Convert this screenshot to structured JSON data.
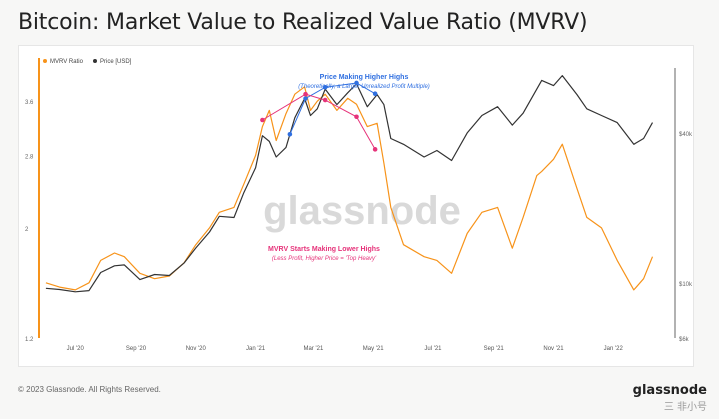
{
  "header": {
    "title": "Bitcoin: Market Value to Realized Value Ratio (MVRV)"
  },
  "footer": {
    "copyright": "© 2023 Glassnode. All Rights Reserved.",
    "logo": "glassnode",
    "watermark_corner": "三 非小号"
  },
  "chart_data": {
    "type": "line",
    "watermark": "glassnode",
    "legend": {
      "placement": "top-left",
      "entries": [
        "MVRV Ratio",
        "Price [USD]"
      ]
    },
    "colors": {
      "mvrv": "#f7931a",
      "price": "#333333",
      "blue_annotation": "#2f6fe0",
      "pink_annotation": "#e6337a"
    },
    "x_ticks": [
      "Jul '20",
      "Sep '20",
      "Nov '20",
      "Jan '21",
      "Mar '21",
      "May '21",
      "Jul '21",
      "Sep '21",
      "Nov '21",
      "Jan '22"
    ],
    "y_left": {
      "scale": "log",
      "ticks": [
        "1.2",
        "2",
        "2.8",
        "3.6"
      ],
      "tick_values": [
        1.2,
        2,
        2.8,
        3.6
      ],
      "range": [
        1.2,
        4.4
      ]
    },
    "y_right": {
      "scale": "log",
      "ticks": [
        "$6k",
        "$10k",
        "$40k"
      ],
      "tick_values": [
        6000,
        10000,
        40000
      ],
      "range": [
        6000,
        80000
      ]
    },
    "series": [
      {
        "name": "MVRV Ratio",
        "dates": [
          "2020-06-01",
          "2020-06-15",
          "2020-07-01",
          "2020-07-15",
          "2020-07-27",
          "2020-08-10",
          "2020-08-20",
          "2020-09-05",
          "2020-09-20",
          "2020-10-05",
          "2020-10-20",
          "2020-11-01",
          "2020-11-15",
          "2020-11-25",
          "2020-12-10",
          "2020-12-20",
          "2021-01-01",
          "2021-01-08",
          "2021-01-15",
          "2021-01-22",
          "2021-02-01",
          "2021-02-10",
          "2021-02-20",
          "2021-02-26",
          "2021-03-05",
          "2021-03-13",
          "2021-03-25",
          "2021-04-05",
          "2021-04-14",
          "2021-04-25",
          "2021-05-05",
          "2021-05-12",
          "2021-05-19",
          "2021-06-01",
          "2021-06-22",
          "2021-07-05",
          "2021-07-20",
          "2021-08-05",
          "2021-08-20",
          "2021-09-05",
          "2021-09-20",
          "2021-10-01",
          "2021-10-15",
          "2021-10-20",
          "2021-11-01",
          "2021-11-10",
          "2021-11-25",
          "2021-12-05",
          "2021-12-20",
          "2022-01-05",
          "2022-01-22",
          "2022-02-01",
          "2022-02-10"
        ],
        "values": [
          1.55,
          1.52,
          1.5,
          1.55,
          1.72,
          1.78,
          1.75,
          1.62,
          1.58,
          1.6,
          1.7,
          1.85,
          2.0,
          2.15,
          2.2,
          2.45,
          2.8,
          3.2,
          3.45,
          3.0,
          3.4,
          3.72,
          3.85,
          3.45,
          3.6,
          3.72,
          3.45,
          3.65,
          3.55,
          3.2,
          3.25,
          2.7,
          2.2,
          1.85,
          1.75,
          1.72,
          1.62,
          1.95,
          2.15,
          2.2,
          1.82,
          2.1,
          2.55,
          2.6,
          2.75,
          2.95,
          2.4,
          2.1,
          2.0,
          1.72,
          1.5,
          1.58,
          1.75
        ]
      },
      {
        "name": "Price [USD]",
        "dates": [
          "2020-06-01",
          "2020-06-15",
          "2020-07-01",
          "2020-07-15",
          "2020-07-27",
          "2020-08-10",
          "2020-08-20",
          "2020-09-05",
          "2020-09-20",
          "2020-10-05",
          "2020-10-20",
          "2020-11-01",
          "2020-11-15",
          "2020-11-25",
          "2020-12-10",
          "2020-12-20",
          "2021-01-01",
          "2021-01-08",
          "2021-01-15",
          "2021-01-22",
          "2021-02-01",
          "2021-02-10",
          "2021-02-20",
          "2021-02-26",
          "2021-03-05",
          "2021-03-13",
          "2021-03-25",
          "2021-04-05",
          "2021-04-14",
          "2021-04-25",
          "2021-05-05",
          "2021-05-12",
          "2021-05-19",
          "2021-06-01",
          "2021-06-22",
          "2021-07-05",
          "2021-07-20",
          "2021-08-05",
          "2021-08-20",
          "2021-09-05",
          "2021-09-20",
          "2021-10-01",
          "2021-10-15",
          "2021-10-20",
          "2021-11-01",
          "2021-11-10",
          "2021-11-25",
          "2021-12-05",
          "2021-12-20",
          "2022-01-05",
          "2022-01-22",
          "2022-02-01",
          "2022-02-10"
        ],
        "values": [
          9500,
          9400,
          9200,
          9300,
          11000,
          11700,
          11800,
          10300,
          10800,
          10700,
          12000,
          13800,
          16000,
          18500,
          18300,
          23000,
          29000,
          39000,
          37000,
          32000,
          35000,
          46000,
          55000,
          47000,
          50000,
          60000,
          52000,
          58000,
          63000,
          51000,
          57000,
          52000,
          38000,
          36000,
          32000,
          34000,
          31000,
          40000,
          47000,
          51000,
          43000,
          48000,
          60000,
          65000,
          62000,
          68000,
          57000,
          50000,
          47000,
          44000,
          36000,
          38000,
          44000
        ]
      }
    ],
    "annotations": [
      {
        "text": "Price Making Higher Highs",
        "color": "#2f6fe0",
        "style": "bold"
      },
      {
        "text": "(Theoretically, a Larger Unrealized Profit Multiple)",
        "color": "#2f6fe0",
        "style": "italic"
      },
      {
        "text": "MVRV Starts Making Lower Highs",
        "color": "#e6337a",
        "style": "bold"
      },
      {
        "text": "(Less Profit, Higher Price = 'Top Heavy'",
        "color": "#e6337a",
        "style": "italic"
      }
    ],
    "blue_points": [
      [
        "2021-02-05",
        39500
      ],
      [
        "2021-02-21",
        55000
      ],
      [
        "2021-03-13",
        61000
      ],
      [
        "2021-04-14",
        63500
      ],
      [
        "2021-05-03",
        57500
      ]
    ],
    "pink_points": [
      [
        "2021-01-08",
        3.3
      ],
      [
        "2021-02-21",
        3.72
      ],
      [
        "2021-03-13",
        3.62
      ],
      [
        "2021-04-14",
        3.35
      ],
      [
        "2021-05-03",
        2.88
      ]
    ]
  }
}
